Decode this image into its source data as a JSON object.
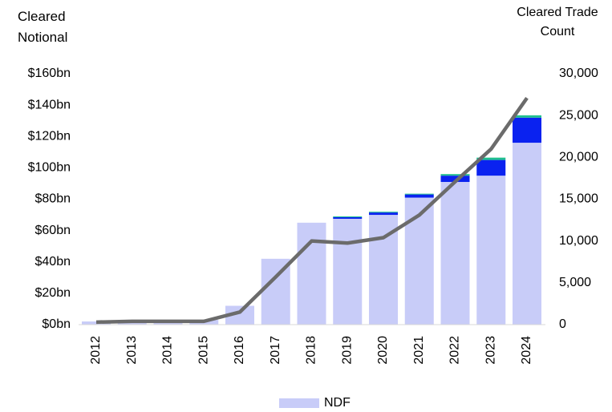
{
  "chart_data": {
    "type": "bar",
    "stacked": true,
    "y_label": "Cleared Notional",
    "y2_label": "Cleared Trade Count",
    "categories": [
      "2012",
      "2013",
      "2014",
      "2015",
      "2016",
      "2017",
      "2018",
      "2019",
      "2020",
      "2021",
      "2022",
      "2023",
      "2024"
    ],
    "series": [
      {
        "name": "NDF",
        "color": "#c8ccf8",
        "values": [
          2,
          1,
          1,
          3,
          12,
          42,
          65,
          67.5,
          70,
          81,
          91,
          95,
          116
        ]
      },
      {
        "color": "#0a22f0",
        "values": [
          0,
          0,
          0,
          0,
          0,
          0,
          0,
          1,
          1.5,
          2,
          4,
          10,
          16
        ]
      },
      {
        "color": "#1fbf8f",
        "values": [
          0,
          0,
          0,
          0,
          0,
          0,
          0,
          0.5,
          0.5,
          0.5,
          1,
          1.5,
          1.5
        ]
      },
      {
        "type": "line",
        "axis": "y2",
        "color": "#6b6b6b",
        "values": [
          300,
          400,
          400,
          400,
          1500,
          5700,
          10000,
          9750,
          10400,
          13100,
          17100,
          21000,
          27100
        ]
      }
    ],
    "ylim": [
      0,
      160
    ],
    "yticks": [
      {
        "value": 0,
        "label": "$0bn"
      },
      {
        "value": 20,
        "label": "$20bn"
      },
      {
        "value": 40,
        "label": "$40bn"
      },
      {
        "value": 60,
        "label": "$60bn"
      },
      {
        "value": 80,
        "label": "$80bn"
      },
      {
        "value": 100,
        "label": "$100bn"
      },
      {
        "value": 120,
        "label": "$120bn"
      },
      {
        "value": 140,
        "label": "$140bn"
      },
      {
        "value": 160,
        "label": "$160bn"
      }
    ],
    "y2lim": [
      0,
      30000
    ],
    "y2ticks": [
      0,
      {
        "value": 5000,
        "label": "5,000"
      },
      {
        "value": 10000,
        "label": "10,000"
      },
      {
        "value": 15000,
        "label": "15,000"
      },
      {
        "value": 20000,
        "label": "20,000"
      },
      {
        "value": 25000,
        "label": "25,000"
      },
      {
        "value": 30000,
        "label": "30,000"
      }
    ],
    "legend": "bottom"
  }
}
